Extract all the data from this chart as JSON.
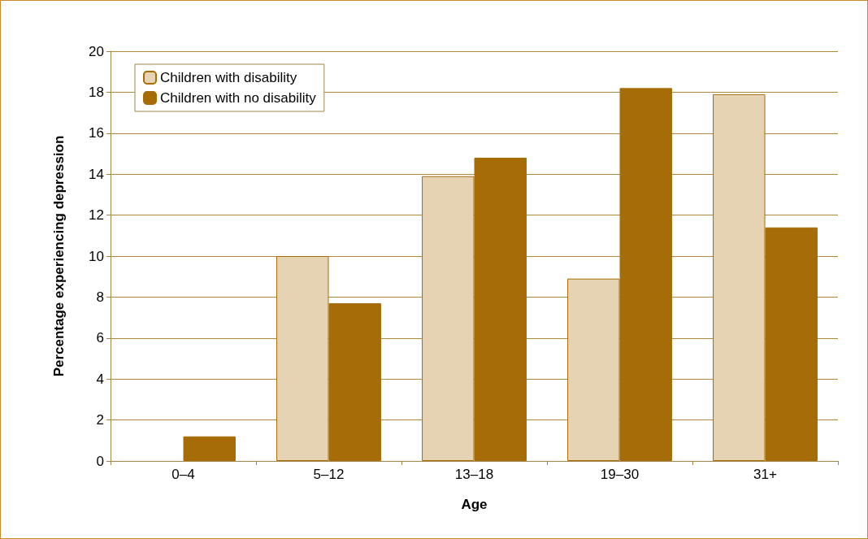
{
  "chart_data": {
    "type": "bar",
    "xlabel": "Age",
    "ylabel": "Percentage experiencing depression",
    "categories": [
      "0–4",
      "5–12",
      "13–18",
      "19–30",
      "31+"
    ],
    "series": [
      {
        "name": "Children with disability",
        "color": "#e6d3b3",
        "values": [
          0,
          10.0,
          13.9,
          8.9,
          17.9
        ]
      },
      {
        "name": "Children with no disability",
        "color": "#a66c08",
        "values": [
          1.2,
          7.7,
          14.8,
          18.2,
          11.4
        ]
      }
    ],
    "ylim": [
      0,
      20
    ],
    "yticks": [
      0,
      2,
      4,
      6,
      8,
      10,
      12,
      14,
      16,
      18,
      20
    ],
    "grid": "y",
    "legend": "top left"
  }
}
